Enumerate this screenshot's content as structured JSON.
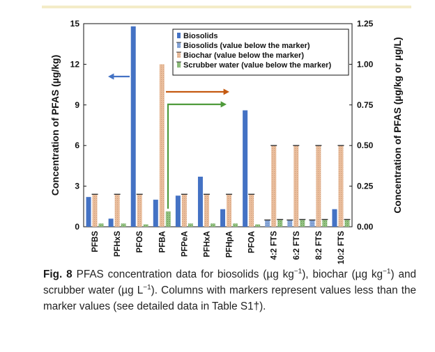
{
  "chart_data": {
    "type": "bar",
    "categories": [
      "PFBS",
      "PFHxS",
      "PFOS",
      "PFBA",
      "PFPeA",
      "PFHxA",
      "PFHpA",
      "PFOA",
      "4:2 FTS",
      "6:2 FTS",
      "8:2 FTS",
      "10:2 FTS"
    ],
    "y_left": {
      "label": "Concentration of PFAS (µg/kg)",
      "ylim": [
        0,
        15
      ],
      "ticks": [
        "0",
        "3",
        "6",
        "9",
        "12",
        "15"
      ],
      "tick_values": [
        0,
        3,
        6,
        9,
        12,
        15
      ]
    },
    "y_right": {
      "label": "Concentration of PFAS (µg/kg or µg/L)",
      "ylim": [
        0,
        1.25
      ],
      "ticks": [
        "0.00",
        "0.25",
        "0.50",
        "0.75",
        "1.00",
        "1.25"
      ],
      "tick_values": [
        0,
        0.25,
        0.5,
        0.75,
        1.0,
        1.25
      ]
    },
    "series": [
      {
        "name": "Biosolids",
        "axis": "left",
        "values": [
          2.2,
          0.6,
          14.8,
          2.0,
          2.3,
          3.7,
          1.3,
          8.6,
          0.5,
          0.5,
          0.5,
          1.3
        ],
        "below_marker": [
          false,
          false,
          false,
          false,
          false,
          false,
          false,
          false,
          true,
          true,
          true,
          false
        ]
      },
      {
        "name": "Biochar",
        "axis": "right",
        "values": [
          0.2,
          0.2,
          0.2,
          1.0,
          0.2,
          0.2,
          0.2,
          0.2,
          0.5,
          0.5,
          0.5,
          0.5
        ],
        "below_marker": [
          true,
          true,
          true,
          false,
          true,
          true,
          true,
          true,
          true,
          true,
          true,
          true
        ]
      },
      {
        "name": "Scrubber water",
        "axis": "right",
        "values": [
          0.02,
          0.02,
          0.015,
          0.095,
          0.02,
          0.02,
          0.02,
          0.015,
          0.045,
          0.045,
          0.045,
          0.045
        ],
        "below_marker": [
          false,
          false,
          false,
          false,
          false,
          false,
          false,
          false,
          true,
          true,
          true,
          true
        ]
      }
    ],
    "legend": {
      "placement": "top-right",
      "entries": [
        "Biosolids",
        "Biosolids (value below the marker)",
        "Biochar (value below the marker)",
        "Scrubber water (value below the marker)"
      ]
    },
    "colors": {
      "biosolids": "#4472c4",
      "biosolids_below": "#7f9ed1",
      "biochar": "#e7b896",
      "scrubber": "#8fbc7d",
      "marker": "#333333",
      "arrow_left": "#4472c4",
      "arrow_biochar": "#c55a11",
      "arrow_scrubber": "#4e9a3a"
    }
  },
  "caption": {
    "label": "Fig. 8",
    "part1": "PFAS concentration data for biosolids (µg kg",
    "sup1": "−1",
    "part2": "), biochar (µg kg",
    "sup2": "−1",
    "part3": ") and scrubber water (µg L",
    "sup3": "−1",
    "part4": "). Columns with markers represent values less than the marker values (see detailed data in Table S1†)."
  }
}
